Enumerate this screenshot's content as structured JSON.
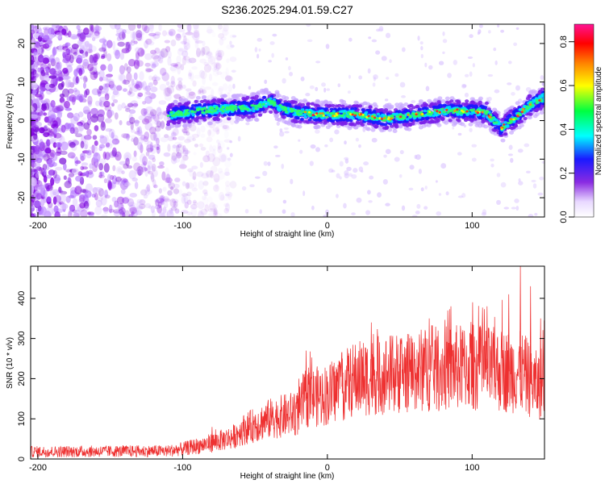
{
  "chart_data": [
    {
      "type": "heatmap",
      "title": "S236.2025.294.01.59.C27",
      "xlabel": "Height of straight line (km)",
      "ylabel": "Frequency (Hz)",
      "xlim": [
        -205,
        150
      ],
      "ylim": [
        -25,
        25
      ],
      "xticks": [
        -200,
        -100,
        0,
        100
      ],
      "xtick_labels": [
        "-200",
        "-100",
        "0",
        "100"
      ],
      "yticks": [
        -20,
        -10,
        0,
        10,
        20
      ],
      "ytick_labels": [
        "-20",
        "-10",
        "0",
        "10",
        "20"
      ],
      "colorbar": {
        "label": "Normalized spectral amplitude",
        "range": [
          0,
          0.88
        ],
        "ticks": [
          0,
          0.2,
          0.4,
          0.6,
          0.8
        ],
        "tick_labels": [
          "0.0",
          "0.2",
          "0.4",
          "0.6",
          "0.8"
        ],
        "colormap": "rainbow"
      },
      "ridge": {
        "start_km": -110,
        "points": [
          [
            -110,
            1.5
          ],
          [
            -90,
            2.5
          ],
          [
            -70,
            3
          ],
          [
            -50,
            3.5
          ],
          [
            -40,
            5
          ],
          [
            -30,
            3
          ],
          [
            -20,
            2
          ],
          [
            0,
            1.5
          ],
          [
            20,
            1.5
          ],
          [
            40,
            0.5
          ],
          [
            60,
            1.5
          ],
          [
            80,
            2.5
          ],
          [
            100,
            2.5
          ],
          [
            110,
            2
          ],
          [
            120,
            -2
          ],
          [
            130,
            1
          ],
          [
            140,
            4
          ],
          [
            150,
            6
          ]
        ]
      }
    },
    {
      "type": "line",
      "xlabel": "Height of straight line (km)",
      "ylabel": "SNR (10 * v/v)",
      "xlim": [
        -205,
        150
      ],
      "ylim": [
        0,
        480
      ],
      "xticks": [
        -200,
        -100,
        0,
        100
      ],
      "xtick_labels": [
        "-200",
        "-100",
        "0",
        "100"
      ],
      "yticks": [
        0,
        100,
        200,
        300,
        400
      ],
      "ytick_labels": [
        "0",
        "100",
        "200",
        "300",
        "400"
      ],
      "color": "#ee3030",
      "series": [
        {
          "name": "SNR",
          "trend": [
            [
              -205,
              18
            ],
            [
              -110,
              20
            ],
            [
              -100,
              25
            ],
            [
              -80,
              40
            ],
            [
              -65,
              55
            ],
            [
              -60,
              70
            ],
            [
              -40,
              100
            ],
            [
              -20,
              115
            ],
            [
              -15,
              150
            ],
            [
              0,
              160
            ],
            [
              20,
              200
            ],
            [
              40,
              210
            ],
            [
              60,
              220
            ],
            [
              80,
              225
            ],
            [
              100,
              230
            ],
            [
              120,
              220
            ],
            [
              135,
              215
            ],
            [
              145,
              180
            ],
            [
              150,
              200
            ]
          ],
          "peaks": [
            [
              -80,
              80
            ],
            [
              -50,
              110
            ],
            [
              -38,
              130
            ],
            [
              -20,
              200
            ],
            [
              -15,
              270
            ],
            [
              10,
              250
            ],
            [
              30,
              340
            ],
            [
              50,
              300
            ],
            [
              70,
              350
            ],
            [
              85,
              380
            ],
            [
              100,
              390
            ],
            [
              110,
              380
            ],
            [
              125,
              410
            ],
            [
              133,
              480
            ],
            [
              140,
              430
            ],
            [
              147,
              350
            ]
          ]
        }
      ]
    }
  ]
}
